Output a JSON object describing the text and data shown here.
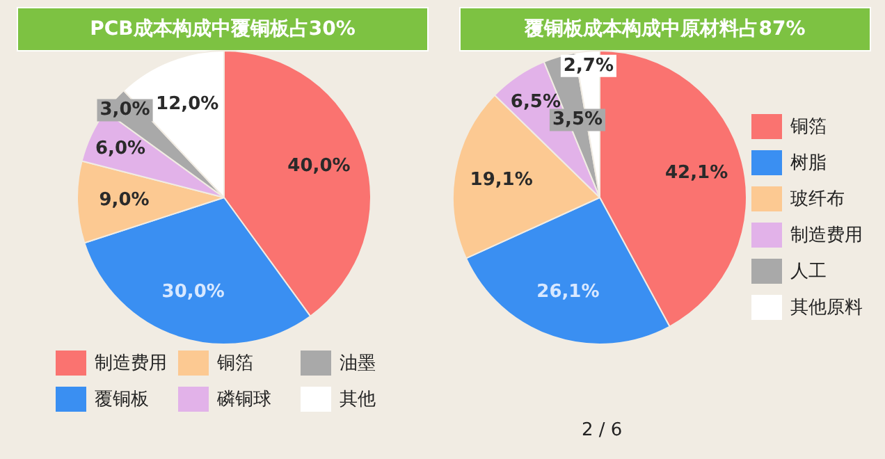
{
  "chart_data": [
    {
      "type": "pie",
      "title": "PCB成本构成中覆铜板占30%",
      "categories": [
        "制造费用",
        "覆铜板",
        "铜箔",
        "磷铜球",
        "油墨",
        "其他"
      ],
      "values": [
        40,
        30,
        9,
        6,
        3,
        12
      ],
      "colors": [
        "#fa7370",
        "#3a8ff2",
        "#fcc992",
        "#e2b2e9",
        "#a9a9a9",
        "#ffffff"
      ],
      "value_labels": [
        "40,0%",
        "30,0%",
        "9,0%",
        "6,0%",
        "3,0%",
        "12,0%"
      ],
      "legend": "bottom"
    },
    {
      "type": "pie",
      "title": "覆铜板成本构成中原材料占87%",
      "categories": [
        "铜箔",
        "树脂",
        "玻纤布",
        "制造费用",
        "人工",
        "其他原料"
      ],
      "values": [
        42.1,
        26.1,
        19.1,
        6.5,
        3.5,
        2.7
      ],
      "colors": [
        "#fa7370",
        "#3a8ff2",
        "#fcc992",
        "#e2b2e9",
        "#a9a9a9",
        "#ffffff"
      ],
      "value_labels": [
        "42,1%",
        "26,1%",
        "19,1%",
        "6,5%",
        "3,5%",
        "2,7%"
      ],
      "legend": "right",
      "annotations": [
        "2 / 6"
      ]
    }
  ]
}
